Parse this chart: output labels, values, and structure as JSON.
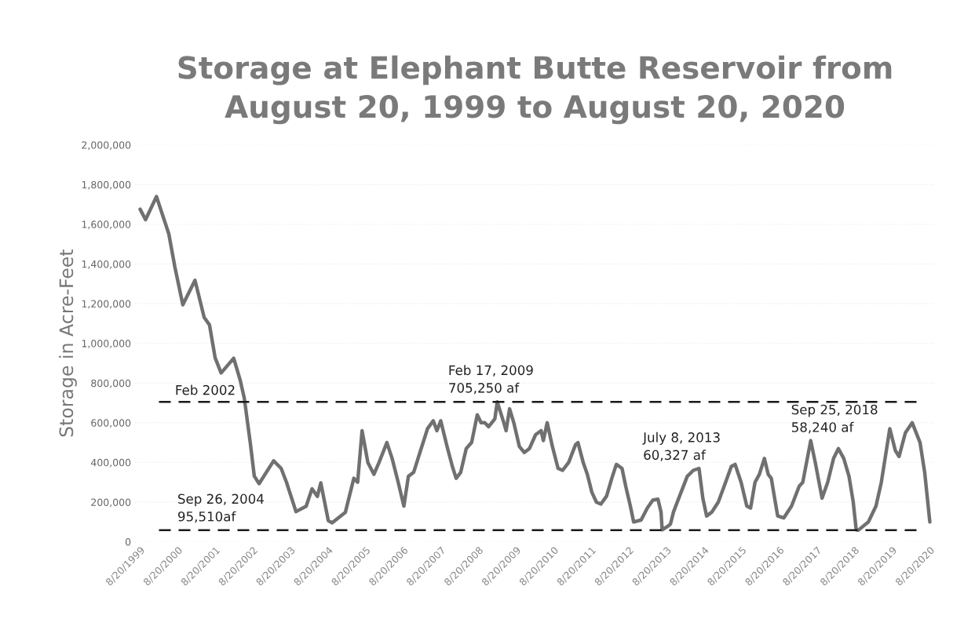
{
  "chart_data": {
    "type": "line",
    "title": "Storage at Elephant Butte Reservoir from\nAugust 20, 1999 to August 20, 2020",
    "ylabel": "Storage in Acre-Feet",
    "series": [
      {
        "color": "#707070",
        "x": [
          "1999-08-20",
          "1999-10-12",
          "2000-01-26",
          "2000-05-25",
          "2000-07-23",
          "2000-10-08",
          "2001-02-03",
          "2001-05-03",
          "2001-06-24",
          "2001-08-18",
          "2001-10-15",
          "2002-02-14",
          "2002-04-19",
          "2002-05-28",
          "2002-07-26",
          "2002-09-02",
          "2002-10-19",
          "2003-03-09",
          "2003-05-21",
          "2003-07-12",
          "2003-10-12",
          "2004-01-19",
          "2004-03-16",
          "2004-05-07",
          "2004-06-09",
          "2004-08-21",
          "2004-09-26",
          "2005-02-03",
          "2005-04-26",
          "2005-06-02",
          "2005-07-15",
          "2005-09-09",
          "2005-11-07",
          "2005-12-27",
          "2006-03-13",
          "2006-05-03",
          "2006-07-01",
          "2006-08-25",
          "2006-10-08",
          "2006-11-28",
          "2007-01-28",
          "2007-04-12",
          "2007-06-06",
          "2007-07-12",
          "2007-08-18",
          "2007-10-19",
          "2007-12-09",
          "2008-01-15",
          "2008-02-28",
          "2008-04-22",
          "2008-06-13",
          "2008-08-07",
          "2008-09-13",
          "2008-10-19",
          "2008-11-25",
          "2009-01-25",
          "2009-02-17",
          "2009-04-22",
          "2009-05-14",
          "2009-06-17",
          "2009-07-28",
          "2009-09-20",
          "2009-11-07",
          "2009-12-27",
          "2010-02-25",
          "2010-04-19",
          "2010-05-11",
          "2010-06-17",
          "2010-08-07",
          "2010-10-01",
          "2010-11-14",
          "2011-01-12",
          "2011-03-20",
          "2011-04-12",
          "2011-06-02",
          "2011-07-12",
          "2011-08-25",
          "2011-10-08",
          "2011-11-21",
          "2012-01-15",
          "2012-03-06",
          "2012-04-19",
          "2012-06-13",
          "2012-07-19",
          "2012-09-02",
          "2012-10-04",
          "2012-12-16",
          "2013-02-14",
          "2013-04-08",
          "2013-05-28",
          "2013-06-27",
          "2013-07-08",
          "2013-09-05",
          "2013-09-27",
          "2013-10-26",
          "2013-12-24",
          "2014-03-09",
          "2014-05-07",
          "2014-07-01",
          "2014-08-07",
          "2014-09-13",
          "2014-11-03",
          "2015-01-04",
          "2015-03-16",
          "2015-05-11",
          "2015-06-17",
          "2015-08-14",
          "2015-10-08",
          "2015-11-14",
          "2015-12-27",
          "2016-02-07",
          "2016-03-27",
          "2016-05-03",
          "2016-06-02",
          "2016-07-01",
          "2016-08-03",
          "2016-10-01",
          "2016-12-16",
          "2017-02-28",
          "2017-04-04",
          "2017-06-20",
          "2017-08-03",
          "2017-10-08",
          "2017-12-02",
          "2018-01-28",
          "2018-03-16",
          "2018-05-07",
          "2018-06-27",
          "2018-08-07",
          "2018-09-05",
          "2018-09-25",
          "2019-01-01",
          "2019-03-16",
          "2019-05-07",
          "2019-07-28",
          "2019-09-20",
          "2019-10-26",
          "2019-12-27",
          "2020-03-02",
          "2020-05-17",
          "2020-07-01",
          "2020-08-20"
        ],
        "values": [
          1676000,
          1623000,
          1740000,
          1551000,
          1384000,
          1194000,
          1318000,
          1131000,
          1093000,
          927000,
          851000,
          925000,
          813000,
          724000,
          495000,
          331000,
          293000,
          408000,
          370000,
          300000,
          152000,
          179000,
          267000,
          229000,
          297000,
          107000,
          95510,
          149000,
          320000,
          300000,
          560000,
          400000,
          340000,
          400000,
          500000,
          420000,
          300000,
          180000,
          330000,
          350000,
          450000,
          570000,
          610000,
          560000,
          610000,
          480000,
          380000,
          320000,
          350000,
          470000,
          500000,
          640000,
          600000,
          600000,
          580000,
          620000,
          705250,
          600000,
          560000,
          670000,
          600000,
          480000,
          450000,
          470000,
          540000,
          560000,
          510000,
          600000,
          480000,
          370000,
          360000,
          400000,
          490000,
          500000,
          400000,
          340000,
          250000,
          200000,
          190000,
          230000,
          320000,
          390000,
          370000,
          280000,
          180000,
          100000,
          110000,
          170000,
          210000,
          215000,
          150000,
          60327,
          80000,
          90000,
          150000,
          230000,
          330000,
          360000,
          370000,
          220000,
          130000,
          150000,
          200000,
          300000,
          380000,
          390000,
          300000,
          180000,
          170000,
          300000,
          340000,
          420000,
          340000,
          320000,
          230000,
          130000,
          120000,
          180000,
          280000,
          300000,
          510000,
          400000,
          220000,
          300000,
          420000,
          470000,
          420000,
          330000,
          200000,
          60000,
          58240,
          100000,
          180000,
          300000,
          570000,
          460000,
          430000,
          550000,
          600000,
          500000,
          350000,
          100000
        ]
      }
    ],
    "xlim": [
      "1999-07-01",
      "2020-10-10"
    ],
    "xticks": [
      {
        "value": "1999-08-20",
        "label": "8/20/1999"
      },
      {
        "value": "2000-08-20",
        "label": "8/20/2000"
      },
      {
        "value": "2001-08-20",
        "label": "8/20/2001"
      },
      {
        "value": "2002-08-20",
        "label": "8/20/2002"
      },
      {
        "value": "2003-08-20",
        "label": "8/20/2003"
      },
      {
        "value": "2004-08-20",
        "label": "8/20/2004"
      },
      {
        "value": "2005-08-20",
        "label": "8/20/2005"
      },
      {
        "value": "2006-08-20",
        "label": "8/20/2006"
      },
      {
        "value": "2007-08-20",
        "label": "8/20/2007"
      },
      {
        "value": "2008-08-20",
        "label": "8/20/2008"
      },
      {
        "value": "2009-08-20",
        "label": "8/20/2009"
      },
      {
        "value": "2010-08-20",
        "label": "8/20/2010"
      },
      {
        "value": "2011-08-20",
        "label": "8/20/2011"
      },
      {
        "value": "2012-08-20",
        "label": "8/20/2012"
      },
      {
        "value": "2013-08-20",
        "label": "8/20/2013"
      },
      {
        "value": "2014-08-20",
        "label": "8/20/2014"
      },
      {
        "value": "2015-08-20",
        "label": "8/20/2015"
      },
      {
        "value": "2016-08-20",
        "label": "8/20/2016"
      },
      {
        "value": "2017-08-20",
        "label": "8/20/2017"
      },
      {
        "value": "2018-08-20",
        "label": "8/20/2018"
      },
      {
        "value": "2019-08-20",
        "label": "8/20/2019"
      },
      {
        "value": "2020-08-20",
        "label": "8/20/2020"
      }
    ],
    "ylim": [
      0,
      2000000
    ],
    "yticks": [
      {
        "value": 0,
        "label": "0"
      },
      {
        "value": 200000,
        "label": "200,000"
      },
      {
        "value": 400000,
        "label": "400,000"
      },
      {
        "value": 600000,
        "label": "600,000"
      },
      {
        "value": 800000,
        "label": "800,000"
      },
      {
        "value": 1000000,
        "label": "1,000,000"
      },
      {
        "value": 1200000,
        "label": "1,200,000"
      },
      {
        "value": 1400000,
        "label": "1,400,000"
      },
      {
        "value": 1600000,
        "label": "1,600,000"
      },
      {
        "value": 1800000,
        "label": "1,800,000"
      },
      {
        "value": 2000000,
        "label": "2,000,000"
      }
    ],
    "grid": "y",
    "ref_lines": [
      {
        "axis": "y",
        "value": 705250,
        "label": "Feb 2002",
        "color": "#1a1a1a",
        "line_style": "dashed"
      },
      {
        "axis": "y",
        "value": 58240,
        "color": "#1a1a1a",
        "line_style": "dashed"
      }
    ],
    "annotations": [
      "Sep 26, 2004\n95,510af",
      {
        "text": "Feb 17, 2009\n705,250 af",
        "x": "2009-02-17",
        "y": 705250
      },
      "July 8, 2013\n60,327 af",
      "Sep 25, 2018\n58,240 af"
    ]
  }
}
